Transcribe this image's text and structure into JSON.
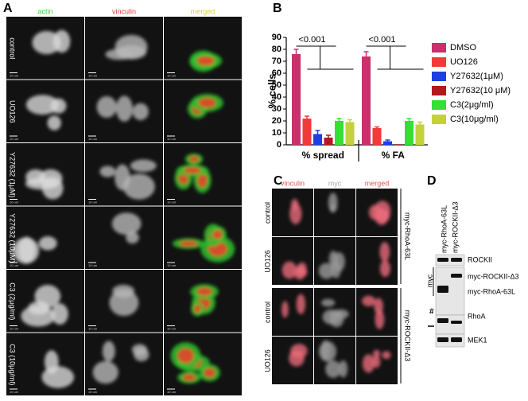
{
  "panel_a": {
    "label": "A",
    "columns": [
      "actin",
      "vinculin",
      "merged"
    ],
    "rows": [
      "control",
      "UO126",
      "Y27632 (1μM)",
      "Y27632 (10μM)",
      "C3 (2μg/ml)",
      "C3 (10μg/ml)"
    ],
    "scale_bar": "10 um"
  },
  "chart_data": {
    "type": "bar",
    "label": "B",
    "ylabel": "% cells",
    "categories": [
      "% spread",
      "% FA"
    ],
    "series": [
      {
        "name": "DMSO",
        "color": "#c9306c",
        "values": [
          76,
          74
        ],
        "errors": [
          4,
          4
        ]
      },
      {
        "name": "UO126",
        "color": "#f23a3a",
        "values": [
          22,
          14
        ],
        "errors": [
          2,
          1
        ]
      },
      {
        "name": "Y27632(1μM)",
        "color": "#1f3fe0",
        "values": [
          9,
          3
        ],
        "errors": [
          3,
          1
        ]
      },
      {
        "name": "Y27632(10 μM)",
        "color": "#b3181c",
        "values": [
          6,
          0
        ],
        "errors": [
          2,
          0
        ]
      },
      {
        "name": "C3(2μg/ml)",
        "color": "#33e033",
        "values": [
          20,
          20
        ],
        "errors": [
          2,
          2
        ]
      },
      {
        "name": "C3(10μg/ml)",
        "color": "#c5d13a",
        "values": [
          19,
          17
        ],
        "errors": [
          2,
          2
        ]
      }
    ],
    "annotations": [
      "<0.001",
      "<0.001"
    ],
    "ylim": [
      0,
      90
    ],
    "yticks": [
      0,
      10,
      20,
      30,
      40,
      50,
      60,
      70,
      80,
      90
    ]
  },
  "panel_c": {
    "label": "C",
    "columns": [
      "vinculin",
      "myc",
      "merged"
    ],
    "rows": [
      "control",
      "UO126",
      "control",
      "UO126"
    ],
    "groups": [
      "myc-RhoA-63L",
      "myc-ROCKII-Δ3"
    ]
  },
  "panel_d": {
    "label": "D",
    "lanes": [
      "myc-RhoA-63L",
      "myc-ROCKII-Δ3"
    ],
    "bands": [
      "ROCKII",
      "myc-ROCKII-Δ3",
      "myc-RhoA-63L",
      "RhoA",
      "MEK1"
    ],
    "myc": "myc",
    "marker": "#"
  }
}
